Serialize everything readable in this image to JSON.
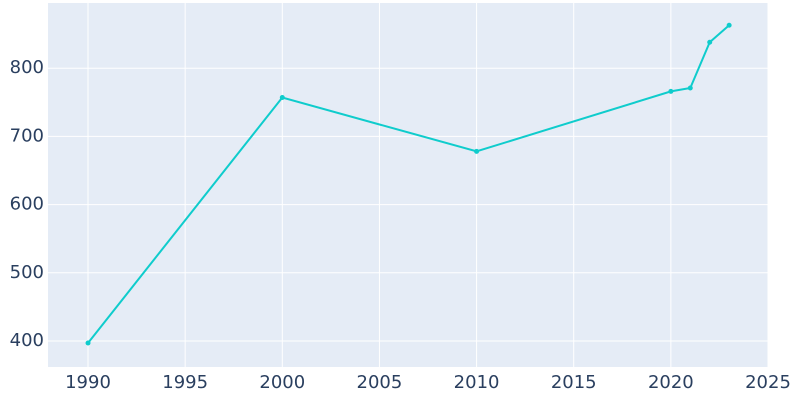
{
  "chart_data": {
    "type": "line",
    "x": [
      1990,
      2000,
      2010,
      2020,
      2021,
      2022,
      2023
    ],
    "series": [
      {
        "color": "#0fcccc",
        "values": [
          397,
          757,
          678,
          766,
          771,
          838,
          863
        ]
      }
    ],
    "xlim": [
      1987.94,
      2025
    ],
    "xticks": [
      1990,
      1995,
      2000,
      2005,
      2010,
      2015,
      2020,
      2025
    ],
    "ylim": [
      361.8,
      895.6
    ],
    "yticks": [
      400,
      500,
      600,
      700,
      800
    ],
    "grid": true
  }
}
